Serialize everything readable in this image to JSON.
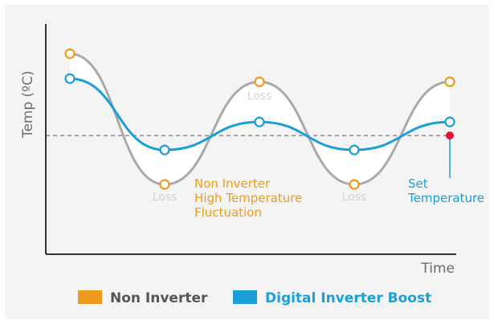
{
  "chart_data": {
    "type": "line",
    "xlabel": "Time",
    "ylabel": "Temp (ºC)",
    "set_temperature_label": [
      "Set",
      "Temperature"
    ],
    "loss_labels": [
      "Loss",
      "Loss",
      "Loss"
    ],
    "annotation": [
      "Non Inverter",
      "High Temperature",
      "Fluctuation"
    ],
    "series": [
      {
        "name": "Non Inverter",
        "color": "#ee9b1d"
      },
      {
        "name": "Digital Inverter Boost",
        "color": "#1a9fd6"
      }
    ],
    "colors": {
      "non_inverter_curve": "#a9a9a9",
      "inverter_curve": "#1a9fd6",
      "non_inverter_marker": "#ee9b1d",
      "set_point": "#e8112d",
      "axis": "#333333",
      "dashed_line": "#777777"
    },
    "grid": false,
    "legend_position": "bottom-center"
  }
}
